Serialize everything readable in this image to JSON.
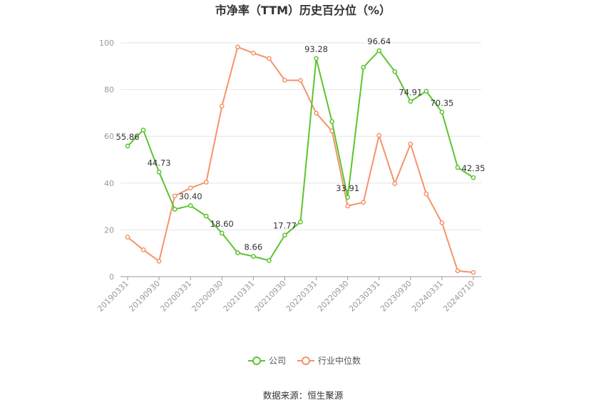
{
  "chart_data": {
    "type": "line",
    "title": "市净率（TTM）历史百分位（%）",
    "source": "数据来源：恒生聚源",
    "ylim": [
      0,
      100
    ],
    "yticks": [
      0,
      20,
      40,
      60,
      80,
      100
    ],
    "x": [
      "20190331",
      "20190630",
      "20190930",
      "20191231",
      "20200331",
      "20200630",
      "20200930",
      "20201231",
      "20210331",
      "20210630",
      "20210930",
      "20211231",
      "20220331",
      "20220630",
      "20220930",
      "20221231",
      "20230331",
      "20230630",
      "20230930",
      "20231231",
      "20240331",
      "20240630",
      "20240710"
    ],
    "x_tick_labels": [
      "20190331",
      "20190930",
      "20200331",
      "20200930",
      "20210331",
      "20210930",
      "20220331",
      "20220930",
      "20230331",
      "20230930",
      "20240331",
      "20240710"
    ],
    "legend_position": "bottom",
    "grid": true,
    "series": [
      {
        "name": "公司",
        "color": "#5cc42f",
        "values": [
          55.86,
          62.7,
          44.73,
          28.8,
          30.4,
          25.9,
          18.6,
          10.2,
          8.66,
          6.9,
          17.77,
          23.4,
          93.28,
          66.3,
          33.91,
          89.5,
          96.64,
          87.7,
          74.91,
          79.3,
          70.35,
          46.7,
          42.35
        ],
        "labels": {
          "0": "55.86",
          "2": "44.73",
          "4": "30.40",
          "6": "18.60",
          "8": "8.66",
          "10": "17.77",
          "12": "93.28",
          "14": "33.91",
          "16": "96.64",
          "18": "74.91",
          "20": "70.35",
          "22": "42.35"
        }
      },
      {
        "name": "行业中位数",
        "color": "#f4936b",
        "values": [
          16.9,
          11.5,
          6.6,
          34.5,
          37.9,
          40.4,
          72.9,
          98.2,
          95.6,
          93.3,
          84.0,
          83.9,
          69.9,
          62.3,
          30.2,
          31.8,
          60.4,
          39.8,
          56.7,
          35.4,
          23.0,
          2.5,
          1.8
        ]
      }
    ]
  }
}
